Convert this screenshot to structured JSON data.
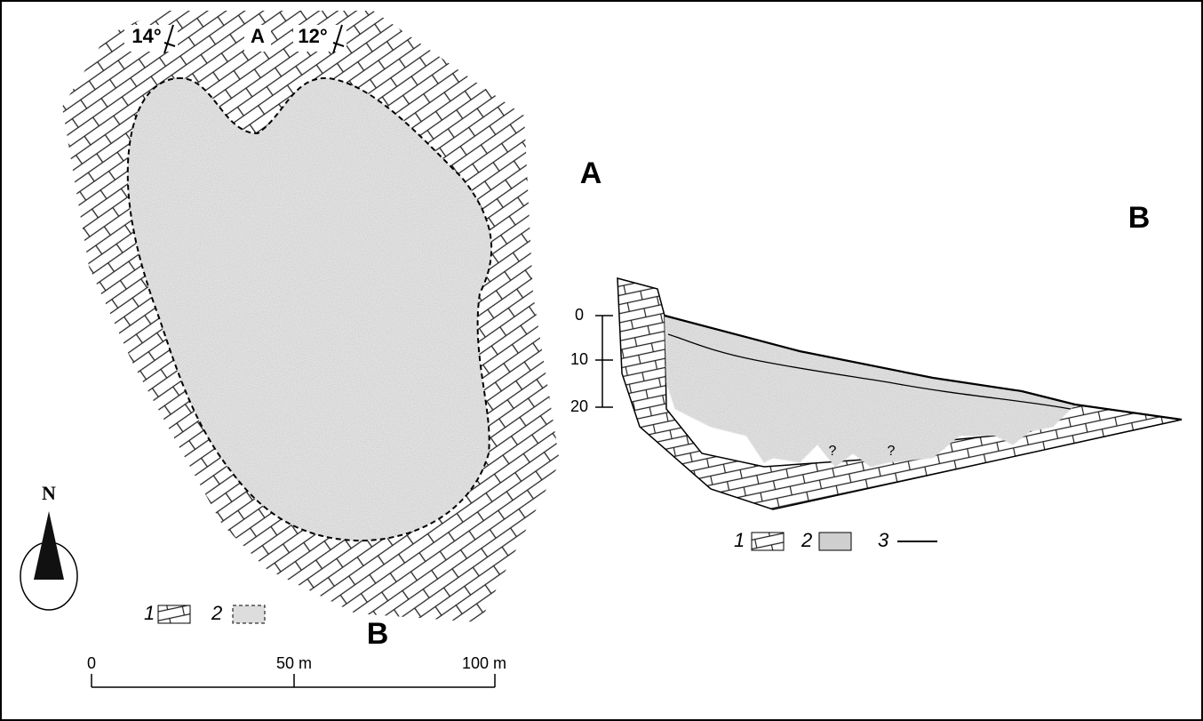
{
  "map": {
    "dips": [
      "14°",
      "12°"
    ],
    "profile_label": "A",
    "label_a": "A",
    "label_b": "B",
    "north": "N",
    "legend": [
      "1",
      "2"
    ],
    "scale": [
      "0",
      "50 m",
      "100 m"
    ]
  },
  "section": {
    "label_b": "B",
    "depth_ticks": [
      "0",
      "10",
      "20"
    ],
    "question_marks": [
      "?",
      "?"
    ],
    "legend": [
      "1",
      "2",
      "3"
    ]
  }
}
